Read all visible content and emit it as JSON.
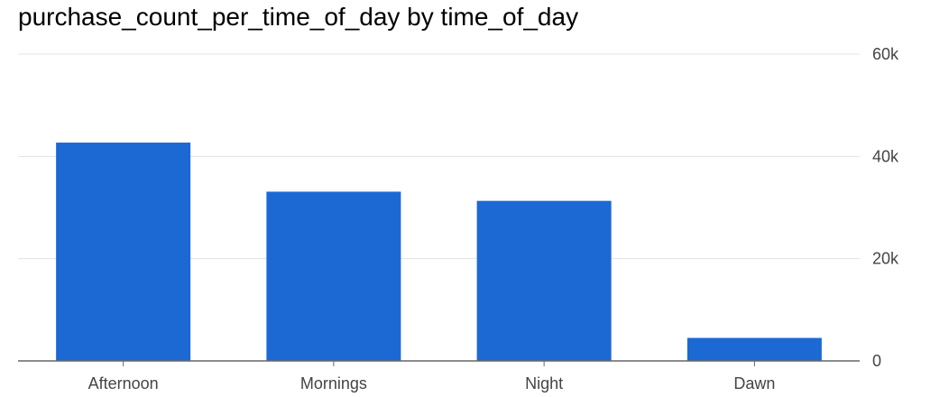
{
  "chart_data": {
    "type": "bar",
    "title": "purchase_count_per_time_of_day by time_of_day",
    "categories": [
      "Afternoon",
      "Mornings",
      "Night",
      "Dawn"
    ],
    "values": [
      42700,
      33100,
      31300,
      4500
    ],
    "xlabel": "",
    "ylabel": "",
    "ylim": [
      0,
      60000
    ],
    "yticks": [
      0,
      20000,
      40000,
      60000
    ],
    "ytick_labels": [
      "0",
      "20k",
      "40k",
      "60k"
    ],
    "y_axis_side": "right",
    "grid": true,
    "legend": "none",
    "colors": {
      "bar": "#1c69d4",
      "grid": "#e3e3e3",
      "axis": "#666666",
      "text": "#444444"
    }
  }
}
